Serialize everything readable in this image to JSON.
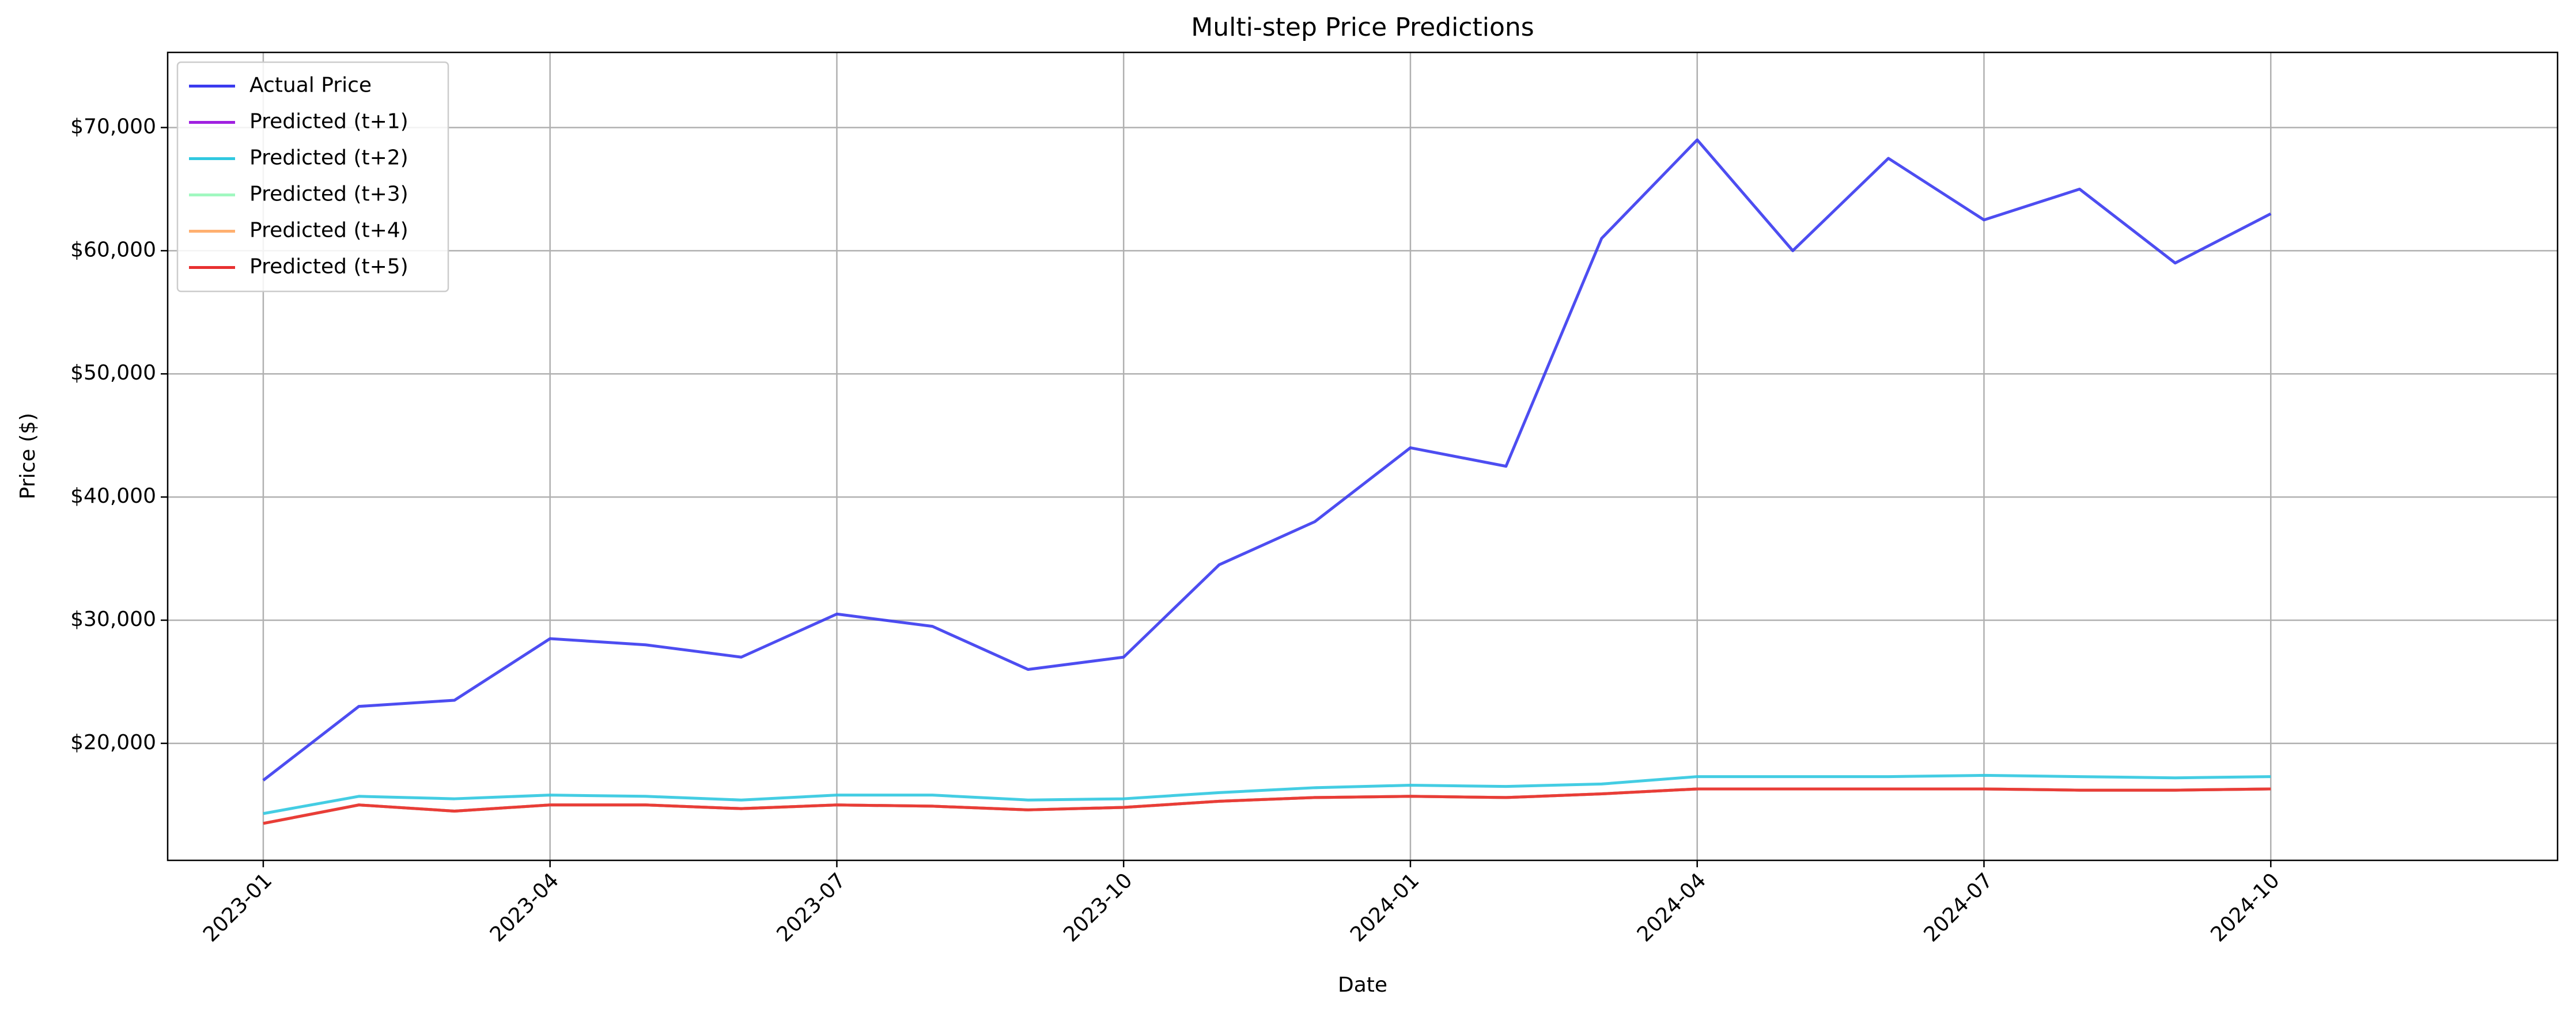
{
  "chart_data": {
    "type": "line",
    "title": "Multi-step Price Predictions",
    "x_label": "Date",
    "y_label": "Price ($)",
    "x": [
      "2023-01",
      "2023-02",
      "2023-03",
      "2023-04",
      "2023-05",
      "2023-06",
      "2023-07",
      "2023-08",
      "2023-09",
      "2023-10",
      "2023-11",
      "2023-12",
      "2024-01",
      "2024-02",
      "2024-03",
      "2024-04",
      "2024-05",
      "2024-06",
      "2024-07",
      "2024-08",
      "2024-09",
      "2024-10"
    ],
    "xlim": [
      "2022-12",
      "2025-01"
    ],
    "xticks": [
      "2023-01",
      "2023-04",
      "2023-07",
      "2023-10",
      "2024-01",
      "2024-04",
      "2024-07",
      "2024-10"
    ],
    "ylim": [
      10500,
      76100
    ],
    "yticks": [
      {
        "value": 20000,
        "label": "$20,000"
      },
      {
        "value": 30000,
        "label": "$30,000"
      },
      {
        "value": 40000,
        "label": "$40,000"
      },
      {
        "value": 50000,
        "label": "$50,000"
      },
      {
        "value": 60000,
        "label": "$60,000"
      },
      {
        "value": 70000,
        "label": "$70,000"
      }
    ],
    "grid": true,
    "legend": "upper left",
    "series": [
      {
        "name": "Actual Price",
        "color": "#3a3aef",
        "values": [
          17000,
          23000,
          23500,
          28500,
          28000,
          27000,
          30500,
          29500,
          26000,
          27000,
          34500,
          38000,
          44000,
          42500,
          61000,
          69000,
          60000,
          67500,
          62500,
          65000,
          59000,
          63000
        ]
      },
      {
        "name": "Predicted (t+1)",
        "color": "#a020e0",
        "values": [
          13500,
          15000,
          14500,
          15000,
          15000,
          14700,
          15000,
          14900,
          14600,
          14800,
          15300,
          15600,
          15700,
          15600,
          15900,
          16300,
          16300,
          16300,
          16300,
          16200,
          16200,
          16300
        ]
      },
      {
        "name": "Predicted (t+2)",
        "color": "#30c8e0",
        "values": [
          14300,
          15700,
          15500,
          15800,
          15700,
          15400,
          15800,
          15800,
          15400,
          15500,
          16000,
          16400,
          16600,
          16500,
          16700,
          17300,
          17300,
          17300,
          17400,
          17300,
          17200,
          17300
        ]
      },
      {
        "name": "Predicted (t+3)",
        "color": "#a0f8c0",
        "values": [
          13500,
          15000,
          14500,
          15000,
          15000,
          14700,
          15000,
          14900,
          14600,
          14800,
          15300,
          15600,
          15700,
          15600,
          15900,
          16300,
          16300,
          16300,
          16300,
          16200,
          16200,
          16300
        ]
      },
      {
        "name": "Predicted (t+4)",
        "color": "#ffb070",
        "values": [
          13500,
          15000,
          14500,
          15000,
          15000,
          14700,
          15000,
          14900,
          14600,
          14800,
          15300,
          15600,
          15700,
          15600,
          15900,
          16300,
          16300,
          16300,
          16300,
          16200,
          16200,
          16300
        ]
      },
      {
        "name": "Predicted (t+5)",
        "color": "#e83030",
        "values": [
          13500,
          15000,
          14500,
          15000,
          15000,
          14700,
          15000,
          14900,
          14600,
          14800,
          15300,
          15600,
          15700,
          15600,
          15900,
          16300,
          16300,
          16300,
          16300,
          16200,
          16200,
          16300
        ]
      }
    ]
  }
}
